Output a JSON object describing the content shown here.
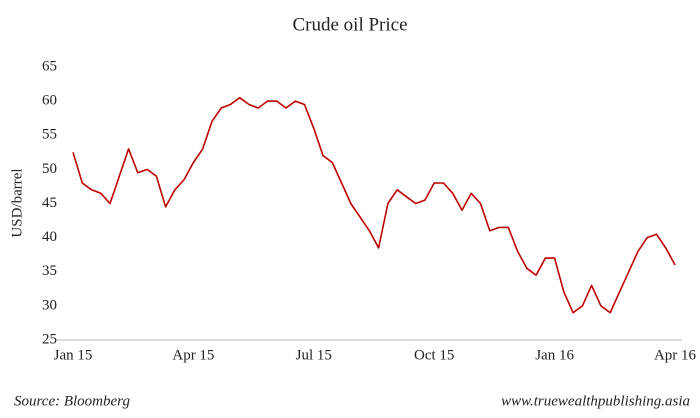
{
  "chart_data": {
    "type": "line",
    "title": "Crude oil Price",
    "y_label": "USD/barrel",
    "categories": [
      "Jan 15",
      null,
      null,
      null,
      null,
      null,
      null,
      null,
      null,
      null,
      null,
      null,
      null,
      "Apr 15",
      null,
      null,
      null,
      null,
      null,
      null,
      null,
      null,
      null,
      null,
      null,
      null,
      "Jul 15",
      null,
      null,
      null,
      null,
      null,
      null,
      null,
      null,
      null,
      null,
      null,
      null,
      "Oct 15",
      null,
      null,
      null,
      null,
      null,
      null,
      null,
      null,
      null,
      null,
      null,
      null,
      "Jan 16",
      null,
      null,
      null,
      null,
      null,
      null,
      null,
      null,
      null,
      null,
      null,
      null,
      "Apr 16"
    ],
    "series": [
      {
        "name": "Crude oil",
        "color": "#c00000",
        "values": [
          52.5,
          48,
          47,
          46.5,
          45,
          49,
          53,
          49.5,
          50,
          49,
          44.5,
          47,
          48.5,
          51,
          53,
          57,
          59,
          59.5,
          60.5,
          59.5,
          59,
          60,
          60,
          59,
          60,
          59.5,
          56,
          52,
          51,
          48,
          45,
          43,
          41,
          38.5,
          45,
          47,
          46,
          45,
          45.5,
          48,
          48,
          46.5,
          44,
          46.5,
          45,
          41,
          41.5,
          41.5,
          38,
          35.5,
          34.5,
          37,
          37,
          32,
          29,
          30,
          33,
          30,
          29,
          32,
          35,
          38,
          40,
          40.5,
          38.5,
          36
        ]
      }
    ],
    "ylim": [
      25,
      65
    ],
    "yticks": [
      25,
      30,
      35,
      40,
      45,
      50,
      55,
      60,
      65
    ],
    "grid": false
  },
  "footer": {
    "source": "Source: Bloomberg",
    "credit": "www.truewealthpublishing.asia"
  }
}
